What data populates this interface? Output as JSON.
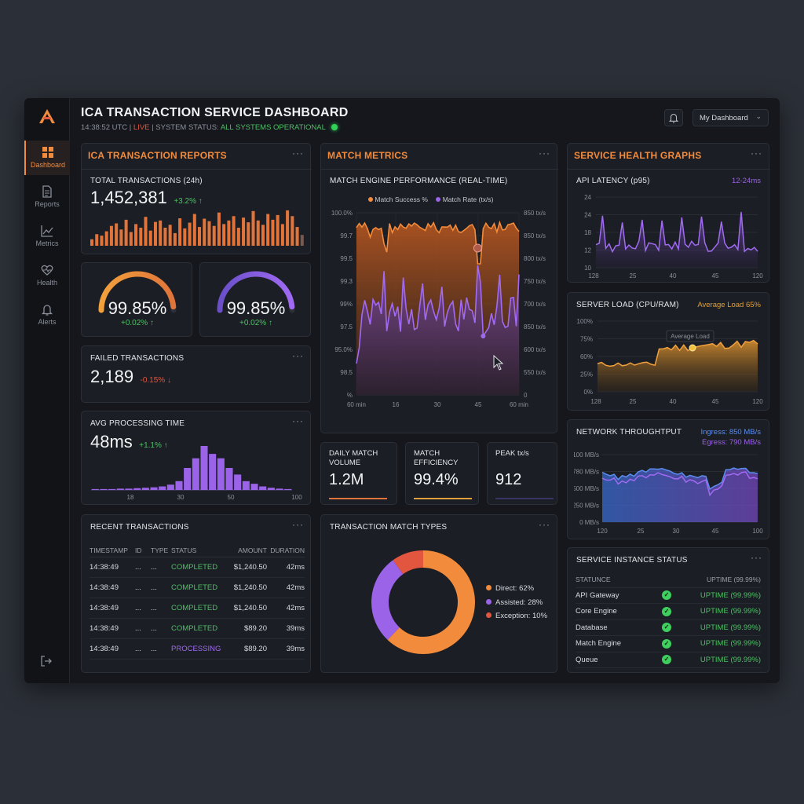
{
  "header": {
    "title": "ICA TRANSACTION SERVICE DASHBOARD",
    "time": "14:38:52 UTC",
    "live": "LIVE",
    "status_label": "SYSTEM STATUS:",
    "status_value": "ALL SYSTEMS OPERATIONAL",
    "dashboard_select": "My Dashboard"
  },
  "sidebar": {
    "items": [
      {
        "label": "Dashboard",
        "icon": "grid-icon",
        "active": true
      },
      {
        "label": "Reports",
        "icon": "document-icon"
      },
      {
        "label": "Metrics",
        "icon": "line-chart-icon"
      },
      {
        "label": "Health",
        "icon": "heart-pulse-icon"
      },
      {
        "label": "Alerts",
        "icon": "bell-icon"
      }
    ]
  },
  "reports": {
    "title": "ICA TRANSACTION REPORTS",
    "total": {
      "label": "TOTAL TRANSACTIONS (24h)",
      "value": "1,452,381",
      "delta": "+3.2% ↑",
      "bars": [
        0.18,
        0.32,
        0.28,
        0.4,
        0.55,
        0.62,
        0.45,
        0.72,
        0.38,
        0.6,
        0.5,
        0.8,
        0.42,
        0.66,
        0.7,
        0.5,
        0.58,
        0.35,
        0.76,
        0.48,
        0.64,
        0.88,
        0.52,
        0.75,
        0.68,
        0.55,
        0.92,
        0.6,
        0.7,
        0.82,
        0.5,
        0.78,
        0.65,
        0.96,
        0.7,
        0.58,
        0.88,
        0.72,
        0.85,
        0.6,
        0.98,
        0.82,
        0.52,
        0.3
      ]
    },
    "gauge1": {
      "value": "99.85%",
      "delta": "+0.02% ↑",
      "fill": 0.97
    },
    "gauge2": {
      "value": "99.85%",
      "delta": "+0.02% ↑",
      "fill": 0.97
    },
    "failed": {
      "label": "FAILED TRANSACTIONS",
      "value": "2,189",
      "delta": "-0.15% ↓"
    },
    "avg": {
      "label": "AVG PROCESSING TIME",
      "value": "48ms",
      "delta": "+1.1% ↑",
      "ticks": [
        "18",
        "30",
        "50",
        "100"
      ],
      "hist": [
        0.02,
        0.02,
        0.02,
        0.03,
        0.03,
        0.04,
        0.05,
        0.06,
        0.08,
        0.12,
        0.2,
        0.5,
        0.72,
        1.0,
        0.82,
        0.72,
        0.5,
        0.35,
        0.2,
        0.14,
        0.08,
        0.05,
        0.03,
        0.02
      ]
    }
  },
  "recent": {
    "title": "RECENT TRANSACTIONS",
    "columns": [
      "TIMESTAMP",
      "ID",
      "TYPE",
      "STATUS",
      "AMOUNT",
      "DURATION"
    ],
    "rows": [
      {
        "ts": "14:38:49",
        "id": "...",
        "type": "...",
        "status": "COMPLETED",
        "amount": "$1,240.50",
        "dur": "42ms"
      },
      {
        "ts": "14:38:49",
        "id": "...",
        "type": "...",
        "status": "COMPLETED",
        "amount": "$1,240.50",
        "dur": "42ms"
      },
      {
        "ts": "14:38:49",
        "id": "...",
        "type": "...",
        "status": "COMPLETED",
        "amount": "$1,240.50",
        "dur": "42ms"
      },
      {
        "ts": "14:38:49",
        "id": "...",
        "type": "...",
        "status": "COMPLETED",
        "amount": "$89.20",
        "dur": "39ms"
      },
      {
        "ts": "14:38:49",
        "id": "...",
        "type": "...",
        "status": "PROCESSING",
        "amount": "$89.20",
        "dur": "39ms"
      }
    ]
  },
  "match": {
    "title": "MATCH METRICS",
    "chart_label": "MATCH ENGINE PERFORMANCE (REAL-TIME)",
    "legend": [
      "Match Success %",
      "Match Rate (tx/s)"
    ],
    "left_ticks": [
      "100.0%",
      "99.7",
      "99.5",
      "99.3",
      "99%",
      "97.5",
      "95.0%",
      "98.5",
      "%"
    ],
    "right_ticks": [
      "850 tx/s",
      "850 tx/s",
      "800 tx/s",
      "750 tx/s",
      "700 tx/s",
      "850 tx/s",
      "600 tx/s",
      "550 tx/s",
      "0"
    ],
    "x_ticks": [
      "60 min",
      "16",
      "30",
      "45",
      "60 min"
    ],
    "cards": [
      {
        "label": "DAILY MATCH VOLUME",
        "value": "1.2M",
        "color": "#e0743a"
      },
      {
        "label": "MATCH EFFICIENCY",
        "value": "99.4%",
        "color": "#e0a03a"
      },
      {
        "label": "PEAK tx/s",
        "value": "912",
        "color": "#6a4fc9"
      }
    ],
    "types_title": "TRANSACTION MATCH TYPES",
    "types": [
      {
        "label": "Direct: 62%",
        "value": 62,
        "color": "#f28b3c"
      },
      {
        "label": "Assisted: 28%",
        "value": 28,
        "color": "#9b63e8"
      },
      {
        "label": "Exception: 10%",
        "value": 10,
        "color": "#e2553f"
      }
    ]
  },
  "health": {
    "title": "SERVICE HEALTH GRAPHS",
    "latency": {
      "label": "API LATENCY (p95)",
      "range": "12-24ms",
      "y_ticks": [
        "24",
        "24",
        "18",
        "12",
        "10"
      ],
      "x_ticks": [
        "128",
        "25",
        "40",
        "45",
        "120"
      ]
    },
    "load": {
      "label": "SERVER LOAD (CPU/RAM)",
      "avg": "Average Load 65%",
      "tooltip": "Average Load",
      "y_ticks": [
        "100%",
        "75%",
        "60%",
        "25%",
        "0%"
      ],
      "x_ticks": [
        "128",
        "25",
        "40",
        "45",
        "120"
      ]
    },
    "net": {
      "label": "NETWORK THROUGHTPUT",
      "ingress": "Ingress: 850 MB/s",
      "egress": "Egress: 790 MB/s",
      "y_ticks": [
        "100 MB/s",
        "780 MB/s",
        "500 MB/s",
        "250 MB/s",
        "0 MB/s"
      ],
      "x_ticks": [
        "120",
        "25",
        "30",
        "45",
        "100"
      ]
    },
    "instances": {
      "title": "SERVICE INSTANCE STATUS",
      "col1": "STATUNCE",
      "col2": "UPTIME (99.99%)",
      "rows": [
        {
          "name": "API Gateway",
          "uptime": "UPTIME (99.99%)"
        },
        {
          "name": "Core Engine",
          "uptime": "UPTIME (99.99%)"
        },
        {
          "name": "Database",
          "uptime": "UPTIME (99.99%)"
        },
        {
          "name": "Match Engine",
          "uptime": "UPTIME (99.99%)"
        },
        {
          "name": "Queue",
          "uptime": "UPTIME (99.99%)"
        }
      ]
    }
  },
  "colors": {
    "accent": "#f28b3c",
    "purple": "#9b63e8",
    "green": "#4cc164",
    "red": "#e2553f"
  }
}
